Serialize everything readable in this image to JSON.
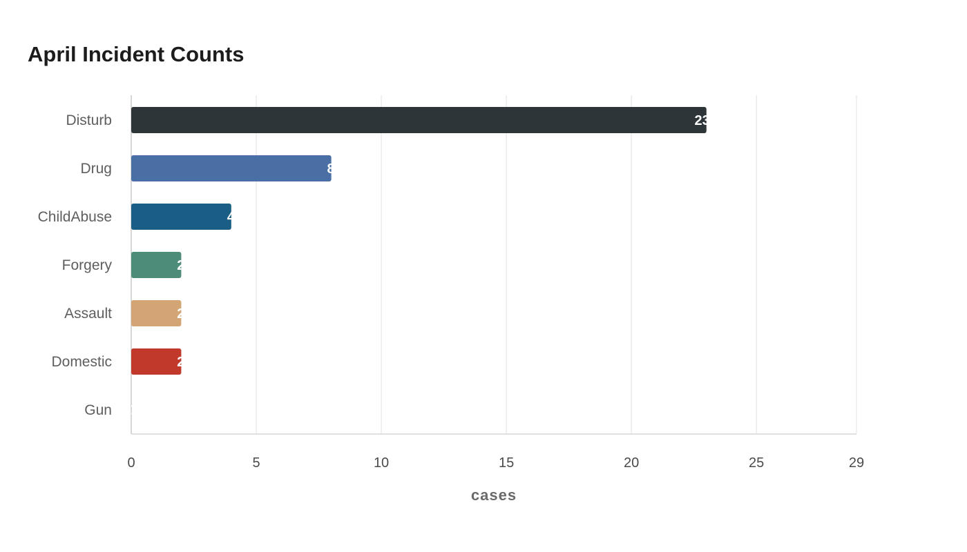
{
  "chart_data": {
    "type": "bar",
    "orientation": "horizontal",
    "title": "April Incident Counts",
    "xlabel": "cases",
    "ylabel": "",
    "categories": [
      "Disturb",
      "Drug",
      "ChildAbuse",
      "Forgery",
      "Assault",
      "Domestic",
      "Gun"
    ],
    "values": [
      23,
      8,
      4,
      2,
      2,
      2,
      0
    ],
    "colors": [
      "#2e3538",
      "#4a6fa5",
      "#1a5e85",
      "#4e8c7a",
      "#d4a574",
      "#c0392b",
      "#888888"
    ],
    "xlim": [
      0,
      29
    ],
    "xticks": [
      "0",
      "5",
      "10",
      "15",
      "20",
      "25",
      "29"
    ],
    "grid": true,
    "legend": "none"
  }
}
